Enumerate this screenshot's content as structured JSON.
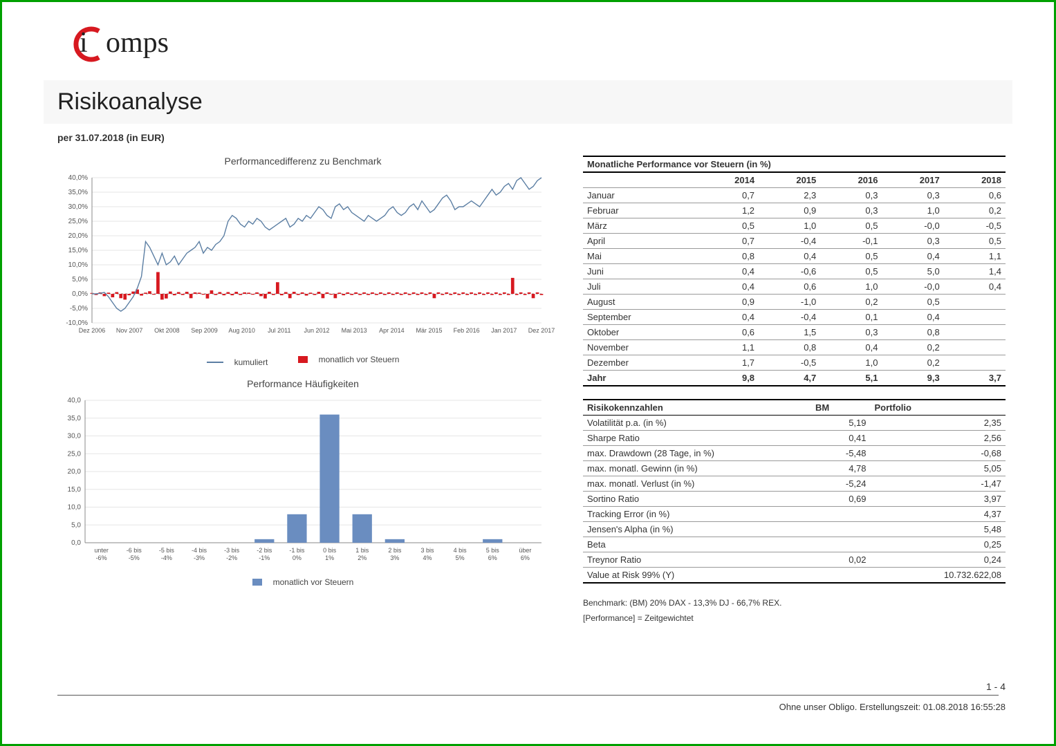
{
  "logo": {
    "text1": "i",
    "text2": "omps"
  },
  "header": {
    "title": "Risikoanalyse",
    "subtitle": "per 31.07.2018 (in EUR)"
  },
  "chart1": {
    "title": "Performancedifferenz zu Benchmark",
    "type": "combo-line-bar",
    "y_min": -10,
    "y_max": 40,
    "y_step": 5,
    "y_labels": [
      "-10,0%",
      "-5,0%",
      "0,0%",
      "5,0%",
      "10,0%",
      "15,0%",
      "20,0%",
      "25,0%",
      "30,0%",
      "35,0%",
      "40,0%"
    ],
    "x_labels": [
      "Dez 2006",
      "Nov 2007",
      "Okt 2008",
      "Sep 2009",
      "Aug 2010",
      "Jul 2011",
      "Jun 2012",
      "Mai 2013",
      "Apr 2014",
      "Mär 2015",
      "Feb 2016",
      "Jan 2017",
      "Dez 2017"
    ],
    "line_color": "#5b7ea3",
    "bar_color": "#d71920",
    "grid_color": "#e5e5e5",
    "line_values": [
      0,
      0,
      0.2,
      0.5,
      -1,
      -3,
      -5,
      -6,
      -5,
      -3,
      -1,
      2,
      6,
      18,
      16,
      13,
      10,
      14,
      10,
      11,
      13,
      10,
      12,
      14,
      15,
      16,
      18,
      14,
      16,
      15,
      17,
      18,
      20,
      25,
      27,
      26,
      24,
      23,
      25,
      24,
      26,
      25,
      23,
      22,
      23,
      24,
      25,
      26,
      23,
      24,
      26,
      25,
      27,
      26,
      28,
      30,
      29,
      27,
      26,
      30,
      31,
      29,
      30,
      28,
      27,
      26,
      25,
      27,
      26,
      25,
      26,
      27,
      29,
      30,
      28,
      27,
      28,
      30,
      31,
      29,
      32,
      30,
      28,
      29,
      31,
      33,
      34,
      32,
      29,
      30,
      30,
      31,
      32,
      31,
      30,
      32,
      34,
      36,
      34,
      35,
      37,
      38,
      36,
      39,
      40,
      38,
      36,
      37,
      39,
      40
    ],
    "bar_values": [
      0.3,
      -0.4,
      0.5,
      -0.8,
      0.4,
      -1.2,
      0.6,
      -1.5,
      -2.0,
      -0.5,
      0.8,
      1.5,
      -0.6,
      0.4,
      0.9,
      -0.3,
      7.5,
      -2.0,
      -1.6,
      0.8,
      -0.5,
      0.6,
      -0.4,
      0.7,
      -1.5,
      0.5,
      0.4,
      -0.3,
      -1.6,
      1.2,
      -0.4,
      0.6,
      -0.5,
      0.6,
      -0.5,
      0.7,
      -0.4,
      0.5,
      0.4,
      -0.3,
      0.5,
      -0.8,
      -1.6,
      0.7,
      -0.4,
      4.0,
      -0.5,
      0.6,
      -1.5,
      0.7,
      -0.4,
      0.5,
      -0.6,
      0.4,
      -0.4,
      0.7,
      -1.5,
      0.5,
      -0.3,
      -1.5,
      0.4,
      -0.5,
      0.5,
      -0.4,
      0.5,
      -0.4,
      0.5,
      -0.4,
      0.5,
      -0.4,
      0.5,
      -0.4,
      0.5,
      -0.4,
      0.5,
      -0.4,
      0.5,
      -0.4,
      0.5,
      -0.4,
      0.5,
      -0.4,
      0.5,
      -1.5,
      0.5,
      -0.4,
      0.5,
      -0.4,
      0.5,
      -0.4,
      0.5,
      -0.4,
      0.5,
      -0.4,
      0.5,
      -0.4,
      0.5,
      -0.4,
      0.5,
      -0.4,
      0.5,
      -0.4,
      5.5,
      -0.4,
      0.5,
      -0.4,
      0.5,
      -1.5,
      0.5,
      -0.4
    ],
    "legend": {
      "line_label": "kumuliert",
      "bar_label": "monatlich vor Steuern"
    }
  },
  "chart2": {
    "title": "Performance Häufigkeiten",
    "type": "bar",
    "y_min": 0,
    "y_max": 40,
    "y_step": 5,
    "y_labels": [
      "0,0",
      "5,0",
      "10,0",
      "15,0",
      "20,0",
      "25,0",
      "30,0",
      "35,0",
      "40,0"
    ],
    "categories": [
      "unter\n-6%",
      "-6 bis\n-5%",
      "-5 bis\n-4%",
      "-4 bis\n-3%",
      "-3 bis\n-2%",
      "-2 bis\n-1%",
      "-1 bis\n0%",
      "0 bis\n1%",
      "1 bis\n2%",
      "2 bis\n3%",
      "3 bis\n4%",
      "4 bis\n5%",
      "5 bis\n6%",
      "über\n6%"
    ],
    "values": [
      0,
      0,
      0,
      0,
      0,
      1,
      8,
      36,
      8,
      1,
      0,
      0,
      1,
      0
    ],
    "bar_color": "#6a8dc0",
    "background": "#ffffff",
    "legend_label": "monatlich vor Steuern"
  },
  "perf_table": {
    "title": "Monatliche Performance vor Steuern (in %)",
    "years": [
      "2014",
      "2015",
      "2016",
      "2017",
      "2018"
    ],
    "rows": [
      {
        "label": "Januar",
        "v": [
          "0,7",
          "2,3",
          "0,3",
          "0,3",
          "0,6"
        ]
      },
      {
        "label": "Februar",
        "v": [
          "1,2",
          "0,9",
          "0,3",
          "1,0",
          "0,2"
        ]
      },
      {
        "label": "März",
        "v": [
          "0,5",
          "1,0",
          "0,5",
          "-0,0",
          "-0,5"
        ]
      },
      {
        "label": "April",
        "v": [
          "0,7",
          "-0,4",
          "-0,1",
          "0,3",
          "0,5"
        ]
      },
      {
        "label": "Mai",
        "v": [
          "0,8",
          "0,4",
          "0,5",
          "0,4",
          "1,1"
        ]
      },
      {
        "label": "Juni",
        "v": [
          "0,4",
          "-0,6",
          "0,5",
          "5,0",
          "1,4"
        ]
      },
      {
        "label": "Juli",
        "v": [
          "0,4",
          "0,6",
          "1,0",
          "-0,0",
          "0,4"
        ]
      },
      {
        "label": "August",
        "v": [
          "0,9",
          "-1,0",
          "0,2",
          "0,5",
          ""
        ]
      },
      {
        "label": "September",
        "v": [
          "0,4",
          "-0,4",
          "0,1",
          "0,4",
          ""
        ]
      },
      {
        "label": "Oktober",
        "v": [
          "0,6",
          "1,5",
          "0,3",
          "0,8",
          ""
        ]
      },
      {
        "label": "November",
        "v": [
          "1,1",
          "0,8",
          "0,4",
          "0,2",
          ""
        ]
      },
      {
        "label": "Dezember",
        "v": [
          "1,7",
          "-0,5",
          "1,0",
          "0,2",
          ""
        ]
      }
    ],
    "total": {
      "label": "Jahr",
      "v": [
        "9,8",
        "4,7",
        "5,1",
        "9,3",
        "3,7"
      ]
    }
  },
  "risk_table": {
    "title": "Risikokennzahlen",
    "col_headers": [
      "BM",
      "Portfolio"
    ],
    "rows": [
      {
        "label": "Volatilität p.a. (in %)",
        "bm": "5,19",
        "pf": "2,35"
      },
      {
        "label": "Sharpe Ratio",
        "bm": "0,41",
        "pf": "2,56"
      },
      {
        "label": "max. Drawdown (28 Tage, in %)",
        "bm": "-5,48",
        "pf": "-0,68"
      },
      {
        "label": "max. monatl. Gewinn (in %)",
        "bm": "4,78",
        "pf": "5,05"
      },
      {
        "label": "max. monatl. Verlust (in %)",
        "bm": "-5,24",
        "pf": "-1,47"
      },
      {
        "label": "Sortino Ratio",
        "bm": "0,69",
        "pf": "3,97"
      },
      {
        "label": "Tracking Error (in %)",
        "bm": "",
        "pf": "4,37"
      },
      {
        "label": "Jensen's Alpha (in %)",
        "bm": "",
        "pf": "5,48"
      },
      {
        "label": "Beta",
        "bm": "",
        "pf": "0,25"
      },
      {
        "label": "Treynor Ratio",
        "bm": "0,02",
        "pf": "0,24"
      },
      {
        "label": "Value at Risk 99% (Y)",
        "bm": "",
        "pf": "10.732.622,08"
      }
    ]
  },
  "footnotes": {
    "benchmark": "Benchmark: (BM) 20% DAX - 13,3% DJ - 66,7% REX.",
    "performance": "[Performance] = Zeitgewichtet"
  },
  "footer": {
    "page": "1 - 4",
    "text": "Ohne unser Obligo. Erstellungszeit: 01.08.2018 16:55:28"
  }
}
